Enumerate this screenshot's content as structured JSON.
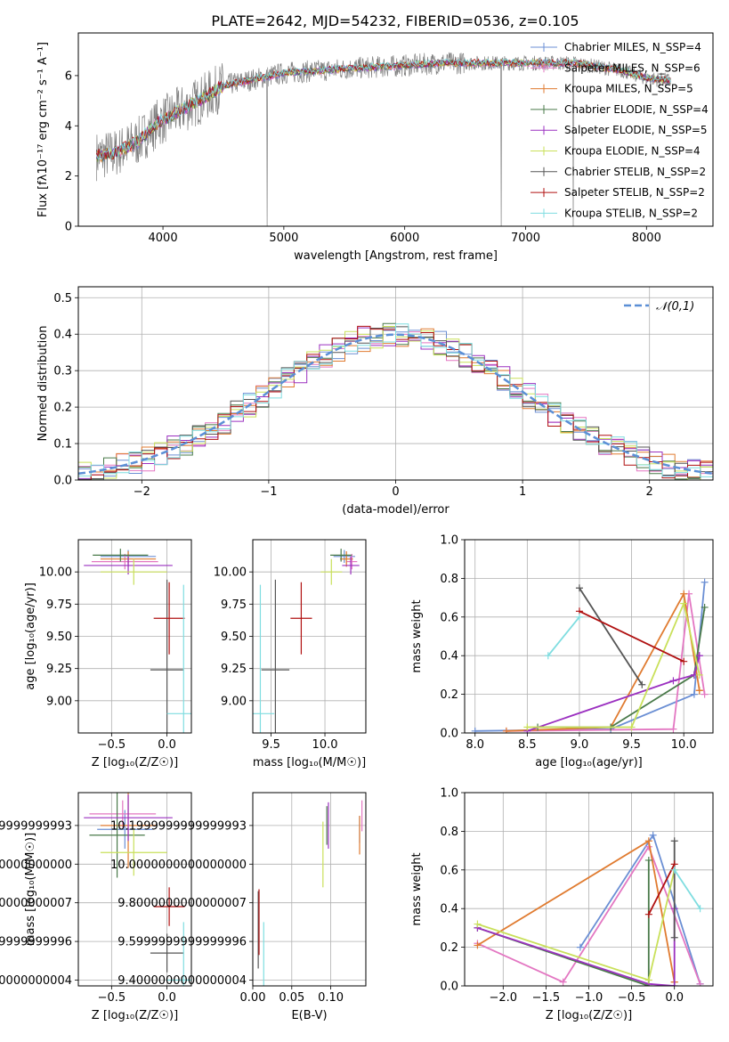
{
  "figure": {
    "title": "PLATE=2642, MJD=54232, FIBERID=0536, z=0.105"
  },
  "chart_data": [
    {
      "id": "spectrum",
      "type": "line",
      "xlabel": "wavelength [Angstrom, rest frame]",
      "ylabel": "Flux [fλ10⁻¹⁷ erg cm⁻² s⁻¹ A⁻¹]",
      "xlim": [
        3300,
        8550
      ],
      "ylim": [
        0,
        7.7
      ],
      "xticks": [
        4000,
        5000,
        6000,
        7000,
        8000
      ],
      "yticks": [
        0,
        2,
        4,
        6
      ],
      "grid": false,
      "legend_position": "top-right",
      "legend": [
        {
          "label": "Chabrier MILES, N_SSP=4",
          "color": "#6b8fd4"
        },
        {
          "label": "Salpeter MILES, N_SSP=6",
          "color": "#e377c2"
        },
        {
          "label": "Kroupa MILES, N_SSP=5",
          "color": "#e07b30"
        },
        {
          "label": "Chabrier ELODIE, N_SSP=4",
          "color": "#4a7a4a"
        },
        {
          "label": "Salpeter ELODIE, N_SSP=5",
          "color": "#9b30c0"
        },
        {
          "label": "Kroupa ELODIE, N_SSP=4",
          "color": "#c9e05a"
        },
        {
          "label": "Chabrier STELIB, N_SSP=2",
          "color": "#555555"
        },
        {
          "label": "Salpeter STELIB, N_SSP=2",
          "color": "#b01010"
        },
        {
          "label": "Kroupa STELIB, N_SSP=2",
          "color": "#7fdde0"
        }
      ],
      "data_color": "#808080",
      "continuum": {
        "x": [
          3450,
          3600,
          3800,
          3950,
          4100,
          4300,
          4500,
          4800,
          5000,
          5300,
          5600,
          6000,
          6300,
          6600,
          7000,
          7400,
          7800,
          8000,
          8200
        ],
        "y": [
          2.8,
          2.9,
          3.4,
          4.1,
          4.5,
          5.0,
          5.6,
          5.9,
          6.1,
          6.2,
          6.3,
          6.4,
          6.5,
          6.5,
          6.5,
          6.5,
          6.2,
          5.9,
          5.8
        ]
      }
    },
    {
      "id": "residuals",
      "type": "line",
      "xlabel": "(data-model)/error",
      "ylabel": "Normed distribution",
      "xlim": [
        -2.5,
        2.5
      ],
      "ylim": [
        0,
        0.53
      ],
      "xticks": [
        -2,
        -1,
        0,
        1,
        2
      ],
      "yticks": [
        0.0,
        0.1,
        0.2,
        0.3,
        0.4,
        0.5
      ],
      "grid": true,
      "legend_position": "top-right",
      "legend": [
        {
          "label": "𝒩(0,1)",
          "color": "#5b8fd6",
          "style": "dashed"
        }
      ],
      "reference_curve": {
        "name": "𝒩(0,1)",
        "mu": 0,
        "sigma": 1
      }
    },
    {
      "id": "age_vs_Z",
      "type": "scatter",
      "xlabel": "Z [log₁₀(Z/Z☉)]",
      "ylabel": "age  [log₁₀(age/yr)]",
      "xlim": [
        -0.8,
        0.22
      ],
      "ylim": [
        8.75,
        10.25
      ],
      "xticks": [
        -0.5,
        0.0
      ],
      "yticks": [
        9.0,
        9.25,
        9.5,
        9.75,
        10.0
      ],
      "grid": true,
      "points": [
        {
          "x": -0.35,
          "y": 10.12,
          "xerr": 0.25,
          "yerr": 0.05,
          "color": "#6b8fd4"
        },
        {
          "x": -0.38,
          "y": 10.08,
          "xerr": 0.3,
          "yerr": 0.06,
          "color": "#e377c2"
        },
        {
          "x": -0.35,
          "y": 10.1,
          "xerr": 0.25,
          "yerr": 0.06,
          "color": "#e07b30"
        },
        {
          "x": -0.42,
          "y": 10.13,
          "xerr": 0.25,
          "yerr": 0.05,
          "color": "#4a7a4a"
        },
        {
          "x": -0.35,
          "y": 10.05,
          "xerr": 0.4,
          "yerr": 0.07,
          "color": "#9b30c0"
        },
        {
          "x": -0.3,
          "y": 10.0,
          "xerr": 0.3,
          "yerr": 0.1,
          "color": "#c9e05a"
        },
        {
          "x": 0.0,
          "y": 9.24,
          "xerr": 0.15,
          "yerr": 0.7,
          "color": "#555555"
        },
        {
          "x": 0.02,
          "y": 9.64,
          "xerr": 0.14,
          "yerr": 0.28,
          "color": "#b01010"
        },
        {
          "x": 0.15,
          "y": 8.9,
          "xerr": 0.15,
          "yerr": 1.0,
          "color": "#7fdde0"
        }
      ]
    },
    {
      "id": "age_vs_mass",
      "type": "scatter",
      "xlabel": "mass [log₁₀(M/M☉)]",
      "ylabel": "",
      "xlim": [
        9.33,
        10.38
      ],
      "ylim": [
        8.75,
        10.25
      ],
      "xticks": [
        9.5,
        10.0
      ],
      "yticks": [
        9.0,
        9.25,
        9.5,
        9.75,
        10.0
      ],
      "grid": true,
      "points": [
        {
          "x": 10.18,
          "y": 10.12,
          "xerr": 0.1,
          "yerr": 0.05,
          "color": "#6b8fd4"
        },
        {
          "x": 10.25,
          "y": 10.08,
          "xerr": 0.05,
          "yerr": 0.06,
          "color": "#e377c2"
        },
        {
          "x": 10.2,
          "y": 10.1,
          "xerr": 0.06,
          "yerr": 0.06,
          "color": "#e07b30"
        },
        {
          "x": 10.15,
          "y": 10.13,
          "xerr": 0.1,
          "yerr": 0.05,
          "color": "#4a7a4a"
        },
        {
          "x": 10.24,
          "y": 10.05,
          "xerr": 0.08,
          "yerr": 0.07,
          "color": "#9b30c0"
        },
        {
          "x": 10.06,
          "y": 10.0,
          "xerr": 0.1,
          "yerr": 0.1,
          "color": "#c9e05a"
        },
        {
          "x": 9.54,
          "y": 9.24,
          "xerr": 0.13,
          "yerr": 0.7,
          "color": "#555555"
        },
        {
          "x": 9.78,
          "y": 9.64,
          "xerr": 0.1,
          "yerr": 0.28,
          "color": "#b01010"
        },
        {
          "x": 9.4,
          "y": 8.9,
          "xerr": 0.13,
          "yerr": 1.0,
          "color": "#7fdde0"
        }
      ]
    },
    {
      "id": "weight_vs_age",
      "type": "line",
      "xlabel": "age  [log₁₀(age/yr)]",
      "ylabel": "mass weight",
      "xlim": [
        7.9,
        10.28
      ],
      "ylim": [
        0,
        1.0
      ],
      "xticks": [
        8.0,
        8.5,
        9.0,
        9.5,
        10.0
      ],
      "yticks": [
        0.0,
        0.2,
        0.4,
        0.6,
        0.8,
        1.0
      ],
      "grid": true,
      "series": [
        {
          "color": "#6b8fd4",
          "x": [
            8.0,
            9.3,
            10.1,
            10.2
          ],
          "y": [
            0.01,
            0.02,
            0.2,
            0.78
          ]
        },
        {
          "color": "#e377c2",
          "x": [
            8.3,
            9.9,
            10.05,
            10.2
          ],
          "y": [
            0.01,
            0.02,
            0.72,
            0.2
          ]
        },
        {
          "color": "#e07b30",
          "x": [
            8.3,
            9.3,
            10.0,
            10.15,
            10.15
          ],
          "y": [
            0.01,
            0.03,
            0.72,
            0.22,
            0.22
          ]
        },
        {
          "color": "#4a7a4a",
          "x": [
            8.6,
            9.3,
            10.1,
            10.2
          ],
          "y": [
            0.03,
            0.03,
            0.3,
            0.65
          ]
        },
        {
          "color": "#9b30c0",
          "x": [
            8.5,
            9.9,
            10.1,
            10.15,
            10.15
          ],
          "y": [
            0.01,
            0.27,
            0.3,
            0.4,
            0.4
          ]
        },
        {
          "color": "#c9e05a",
          "x": [
            8.5,
            9.5,
            10.0,
            10.15
          ],
          "y": [
            0.03,
            0.03,
            0.67,
            0.3
          ]
        },
        {
          "color": "#555555",
          "x": [
            9.0,
            9.6
          ],
          "y": [
            0.75,
            0.25
          ]
        },
        {
          "color": "#b01010",
          "x": [
            9.0,
            10.0
          ],
          "y": [
            0.63,
            0.37
          ]
        },
        {
          "color": "#7fdde0",
          "x": [
            8.7,
            9.0
          ],
          "y": [
            0.4,
            0.6
          ]
        }
      ]
    },
    {
      "id": "mass_vs_Z",
      "type": "scatter",
      "xlabel": "Z [log₁₀(Z/Z☉)]",
      "ylabel": "mass [log₁₀(M/M☉)]",
      "xlim": [
        -0.8,
        0.22
      ],
      "ylim": [
        9.37,
        10.37
      ],
      "xticks": [
        -0.5,
        0.0
      ],
      "yticks": [
        9.4,
        9.6,
        9.8,
        10.0,
        10.2
      ],
      "grid": true,
      "points": [
        {
          "x": -0.38,
          "y": 10.18,
          "xerr": 0.25,
          "yerr": 0.1,
          "color": "#6b8fd4"
        },
        {
          "x": -0.4,
          "y": 10.26,
          "xerr": 0.3,
          "yerr": 0.07,
          "color": "#e377c2"
        },
        {
          "x": -0.35,
          "y": 10.2,
          "xerr": 0.25,
          "yerr": 0.22,
          "color": "#e07b30"
        },
        {
          "x": -0.45,
          "y": 10.15,
          "xerr": 0.25,
          "yerr": 0.22,
          "color": "#4a7a4a"
        },
        {
          "x": -0.35,
          "y": 10.24,
          "xerr": 0.4,
          "yerr": 0.12,
          "color": "#9b30c0"
        },
        {
          "x": -0.3,
          "y": 10.06,
          "xerr": 0.3,
          "yerr": 0.12,
          "color": "#c9e05a"
        },
        {
          "x": 0.0,
          "y": 9.54,
          "xerr": 0.15,
          "yerr": 0.1,
          "color": "#555555"
        },
        {
          "x": 0.02,
          "y": 9.78,
          "xerr": 0.14,
          "yerr": 0.1,
          "color": "#b01010"
        },
        {
          "x": 0.15,
          "y": 9.4,
          "xerr": 0.15,
          "yerr": 0.3,
          "color": "#7fdde0"
        }
      ]
    },
    {
      "id": "mass_vs_ebv",
      "type": "scatter",
      "xlabel": "E(B-V)",
      "ylabel": "",
      "xlim": [
        0.0,
        0.145
      ],
      "ylim": [
        9.37,
        10.37
      ],
      "xticks": [
        0.0,
        0.05,
        0.1
      ],
      "yticks": [
        9.4,
        9.6,
        9.8,
        10.0,
        10.2
      ],
      "grid": true,
      "points": [
        {
          "x": 0.137,
          "y": 10.18,
          "yerr": 0.07,
          "color": "#6b8fd4"
        },
        {
          "x": 0.14,
          "y": 10.25,
          "yerr": 0.08,
          "color": "#e377c2"
        },
        {
          "x": 0.137,
          "y": 10.15,
          "yerr": 0.1,
          "color": "#e07b30"
        },
        {
          "x": 0.095,
          "y": 10.2,
          "yerr": 0.1,
          "color": "#4a7a4a"
        },
        {
          "x": 0.097,
          "y": 10.2,
          "yerr": 0.12,
          "color": "#9b30c0"
        },
        {
          "x": 0.09,
          "y": 10.05,
          "yerr": 0.17,
          "color": "#c9e05a"
        },
        {
          "x": 0.007,
          "y": 9.66,
          "yerr": 0.2,
          "color": "#555555"
        },
        {
          "x": 0.008,
          "y": 9.7,
          "yerr": 0.17,
          "color": "#b01010"
        },
        {
          "x": 0.014,
          "y": 9.48,
          "yerr": 0.22,
          "color": "#7fdde0"
        }
      ]
    },
    {
      "id": "weight_vs_Z",
      "type": "line",
      "xlabel": "Z [log₁₀(Z/Z☉)]",
      "ylabel": "mass weight",
      "xlim": [
        -2.45,
        0.45
      ],
      "ylim": [
        0,
        1.0
      ],
      "xticks": [
        -2.0,
        -1.5,
        -1.0,
        -0.5,
        0.0
      ],
      "yticks": [
        0.0,
        0.2,
        0.4,
        0.6,
        0.8,
        1.0
      ],
      "grid": true,
      "series": [
        {
          "color": "#6b8fd4",
          "x": [
            -1.1,
            -0.25,
            0.3,
            0.3
          ],
          "y": [
            0.2,
            0.78,
            0.01,
            0.01
          ]
        },
        {
          "color": "#e377c2",
          "x": [
            -2.3,
            -1.3,
            -0.3,
            0.3
          ],
          "y": [
            0.22,
            0.02,
            0.72,
            0.01
          ]
        },
        {
          "color": "#e07b30",
          "x": [
            -2.3,
            -0.3,
            0.0,
            0.0
          ],
          "y": [
            0.21,
            0.75,
            0.02,
            0.02
          ]
        },
        {
          "color": "#4a7a4a",
          "x": [
            -2.3,
            -0.3,
            -0.3
          ],
          "y": [
            0.3,
            0.0,
            0.65
          ]
        },
        {
          "color": "#9b30c0",
          "x": [
            -2.3,
            -0.3,
            0.0,
            0.0
          ],
          "y": [
            0.3,
            0.01,
            0.0,
            0.4
          ]
        },
        {
          "color": "#c9e05a",
          "x": [
            -2.3,
            -0.3,
            0.0,
            0.0
          ],
          "y": [
            0.32,
            0.03,
            0.6,
            0.6
          ]
        },
        {
          "color": "#555555",
          "x": [
            0.0,
            0.0
          ],
          "y": [
            0.75,
            0.25
          ]
        },
        {
          "color": "#b01010",
          "x": [
            -0.3,
            0.0
          ],
          "y": [
            0.37,
            0.63
          ]
        },
        {
          "color": "#7fdde0",
          "x": [
            0.0,
            0.3
          ],
          "y": [
            0.6,
            0.4
          ]
        }
      ]
    }
  ]
}
